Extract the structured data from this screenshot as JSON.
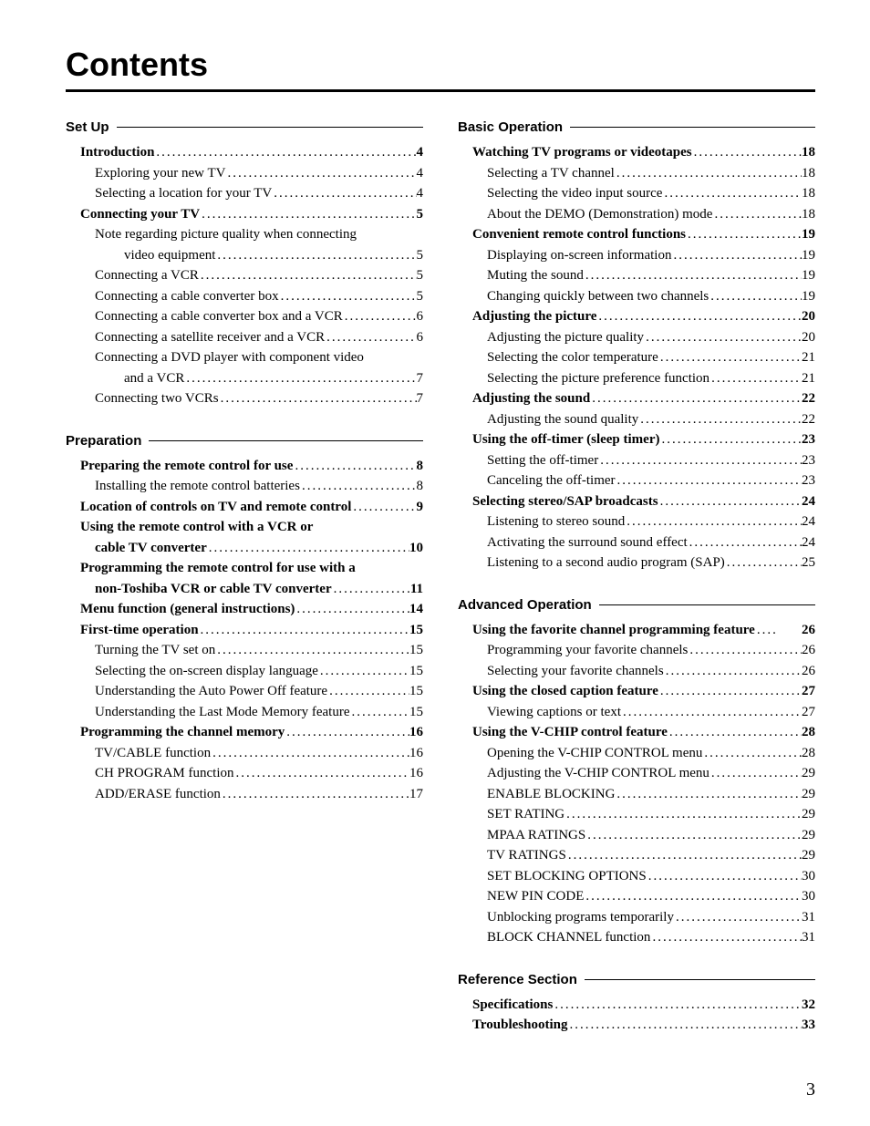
{
  "title": "Contents",
  "page_number": "3",
  "dot_fill": "........................................................................................................................",
  "columns": [
    {
      "sections": [
        {
          "heading": "Set Up",
          "entries": [
            {
              "text": "Introduction",
              "page": "4",
              "bold": true,
              "indent": 0
            },
            {
              "text": "Exploring your new TV",
              "page": "4",
              "bold": false,
              "indent": 1
            },
            {
              "text": "Selecting a location for your TV",
              "page": "4",
              "bold": false,
              "indent": 1
            },
            {
              "text": "Connecting your TV",
              "page": "5",
              "bold": true,
              "indent": 0
            },
            {
              "text": "Note regarding picture quality when connecting",
              "page": "",
              "bold": false,
              "indent": 1,
              "cont": true
            },
            {
              "text": "video equipment",
              "page": "5",
              "bold": false,
              "indent": 2
            },
            {
              "text": "Connecting a VCR",
              "page": "5",
              "bold": false,
              "indent": 1
            },
            {
              "text": "Connecting a cable converter box",
              "page": "5",
              "bold": false,
              "indent": 1
            },
            {
              "text": "Connecting a cable converter box and a VCR",
              "page": "6",
              "bold": false,
              "indent": 1
            },
            {
              "text": "Connecting a satellite receiver and a VCR",
              "page": "6",
              "bold": false,
              "indent": 1
            },
            {
              "text": "Connecting a DVD player with component video",
              "page": "",
              "bold": false,
              "indent": 1,
              "cont": true
            },
            {
              "text": "and a VCR",
              "page": "7",
              "bold": false,
              "indent": 2
            },
            {
              "text": "Connecting two VCRs",
              "page": "7",
              "bold": false,
              "indent": 1
            }
          ]
        },
        {
          "heading": "Preparation",
          "entries": [
            {
              "text": "Preparing the remote control for use",
              "page": "8",
              "bold": true,
              "indent": 0
            },
            {
              "text": "Installing the remote control batteries",
              "page": "8",
              "bold": false,
              "indent": 1
            },
            {
              "text": "Location of controls on TV and remote control",
              "page": "9",
              "bold": true,
              "indent": 0
            },
            {
              "text": "Using the remote control with a VCR or",
              "page": "",
              "bold": true,
              "indent": 0,
              "cont": true
            },
            {
              "text": "cable TV converter",
              "page": "10",
              "bold": true,
              "indent": 1
            },
            {
              "text": "Programming the remote control for use with a",
              "page": "",
              "bold": true,
              "indent": 0,
              "cont": true
            },
            {
              "text": "non-Toshiba VCR or cable TV converter",
              "page": "11",
              "bold": true,
              "indent": 1
            },
            {
              "text": "Menu function (general instructions)",
              "page": "14",
              "bold": true,
              "indent": 0
            },
            {
              "text": "First-time operation",
              "page": "15",
              "bold": true,
              "indent": 0
            },
            {
              "text": "Turning the TV set on",
              "page": "15",
              "bold": false,
              "indent": 1
            },
            {
              "text": "Selecting the on-screen display language",
              "page": "15",
              "bold": false,
              "indent": 1
            },
            {
              "text": "Understanding the Auto Power Off feature",
              "page": "15",
              "bold": false,
              "indent": 1
            },
            {
              "text": "Understanding the Last Mode Memory feature",
              "page": "15",
              "bold": false,
              "indent": 1
            },
            {
              "text": "Programming the channel memory",
              "page": "16",
              "bold": true,
              "indent": 0
            },
            {
              "text": "TV/CABLE function",
              "page": "16",
              "bold": false,
              "indent": 1
            },
            {
              "text": "CH PROGRAM function",
              "page": "16",
              "bold": false,
              "indent": 1
            },
            {
              "text": "ADD/ERASE function",
              "page": "17",
              "bold": false,
              "indent": 1
            }
          ]
        }
      ]
    },
    {
      "sections": [
        {
          "heading": "Basic Operation",
          "entries": [
            {
              "text": "Watching TV programs or videotapes",
              "page": "18",
              "bold": true,
              "indent": 0
            },
            {
              "text": "Selecting a TV channel",
              "page": "18",
              "bold": false,
              "indent": 1
            },
            {
              "text": "Selecting the video input source",
              "page": "18",
              "bold": false,
              "indent": 1
            },
            {
              "text": "About the DEMO (Demonstration) mode",
              "page": "18",
              "bold": false,
              "indent": 1
            },
            {
              "text": "Convenient remote control functions",
              "page": "19",
              "bold": true,
              "indent": 0
            },
            {
              "text": "Displaying on-screen information",
              "page": "19",
              "bold": false,
              "indent": 1
            },
            {
              "text": "Muting the sound",
              "page": "19",
              "bold": false,
              "indent": 1
            },
            {
              "text": "Changing quickly between two channels",
              "page": "19",
              "bold": false,
              "indent": 1
            },
            {
              "text": "Adjusting the picture",
              "page": "20",
              "bold": true,
              "indent": 0
            },
            {
              "text": "Adjusting the picture quality",
              "page": "20",
              "bold": false,
              "indent": 1
            },
            {
              "text": "Selecting the color temperature",
              "page": "21",
              "bold": false,
              "indent": 1
            },
            {
              "text": "Selecting the picture preference function",
              "page": "21",
              "bold": false,
              "indent": 1
            },
            {
              "text": "Adjusting the sound",
              "page": "22",
              "bold": true,
              "indent": 0
            },
            {
              "text": "Adjusting the sound quality",
              "page": "22",
              "bold": false,
              "indent": 1
            },
            {
              "text": "Using the off-timer (sleep timer)",
              "page": "23",
              "bold": true,
              "indent": 0
            },
            {
              "text": "Setting the off-timer",
              "page": "23",
              "bold": false,
              "indent": 1
            },
            {
              "text": "Canceling the off-timer",
              "page": "23",
              "bold": false,
              "indent": 1
            },
            {
              "text": "Selecting stereo/SAP broadcasts",
              "page": "24",
              "bold": true,
              "indent": 0
            },
            {
              "text": "Listening to stereo sound",
              "page": "24",
              "bold": false,
              "indent": 1
            },
            {
              "text": "Activating the surround sound effect",
              "page": "24",
              "bold": false,
              "indent": 1
            },
            {
              "text": "Listening to a second audio program (SAP)",
              "page": "25",
              "bold": false,
              "indent": 1
            }
          ]
        },
        {
          "heading": "Advanced Operation",
          "entries": [
            {
              "text": "Using the favorite channel programming feature",
              "page": "26",
              "bold": true,
              "indent": 0,
              "tight": true
            },
            {
              "text": "Programming your favorite channels",
              "page": "26",
              "bold": false,
              "indent": 1
            },
            {
              "text": "Selecting your favorite channels",
              "page": "26",
              "bold": false,
              "indent": 1
            },
            {
              "text": "Using the closed caption feature",
              "page": "27",
              "bold": true,
              "indent": 0
            },
            {
              "text": "Viewing captions or text",
              "page": "27",
              "bold": false,
              "indent": 1
            },
            {
              "text": "Using the V-CHIP control feature",
              "page": "28",
              "bold": true,
              "indent": 0
            },
            {
              "text": "Opening the V-CHIP CONTROL menu",
              "page": "28",
              "bold": false,
              "indent": 1
            },
            {
              "text": "Adjusting the V-CHIP CONTROL menu",
              "page": "29",
              "bold": false,
              "indent": 1
            },
            {
              "text": "ENABLE BLOCKING",
              "page": "29",
              "bold": false,
              "indent": 1
            },
            {
              "text": "SET RATING",
              "page": "29",
              "bold": false,
              "indent": 1
            },
            {
              "text": "MPAA RATINGS",
              "page": "29",
              "bold": false,
              "indent": 1
            },
            {
              "text": "TV RATINGS",
              "page": "29",
              "bold": false,
              "indent": 1
            },
            {
              "text": "SET BLOCKING OPTIONS",
              "page": "30",
              "bold": false,
              "indent": 1
            },
            {
              "text": "NEW PIN CODE",
              "page": "30",
              "bold": false,
              "indent": 1
            },
            {
              "text": "Unblocking programs temporarily",
              "page": "31",
              "bold": false,
              "indent": 1
            },
            {
              "text": "BLOCK CHANNEL function",
              "page": "31",
              "bold": false,
              "indent": 1
            }
          ]
        },
        {
          "heading": "Reference Section",
          "entries": [
            {
              "text": "Specifications",
              "page": "32",
              "bold": true,
              "indent": 0
            },
            {
              "text": "Troubleshooting",
              "page": "33",
              "bold": true,
              "indent": 0
            }
          ]
        }
      ]
    }
  ]
}
